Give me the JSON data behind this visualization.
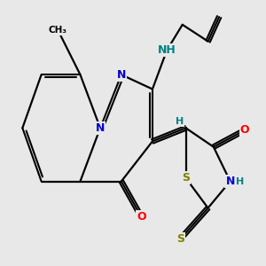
{
  "bg_color": "#e8e8e8",
  "bond_color": "#000000",
  "atom_colors": {
    "N": "#0000cd",
    "O": "#ff0000",
    "S": "#808000",
    "H": "#008080",
    "C": "#000000"
  },
  "figsize": [
    3.0,
    3.0
  ],
  "dpi": 100
}
